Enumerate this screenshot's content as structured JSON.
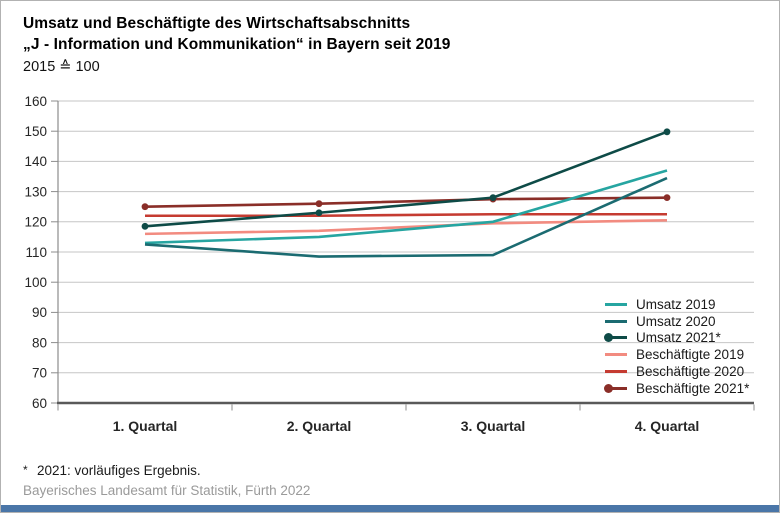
{
  "header": {
    "title_line1": "Umsatz und Beschäftigte des Wirtschaftsabschnitts",
    "title_line2": "„J - Information und Kommunikation“ in Bayern seit 2019",
    "index_note": "2015 ≙ 100"
  },
  "chart_data": {
    "type": "line",
    "categories": [
      "1. Quartal",
      "2. Quartal",
      "3. Quartal",
      "4. Quartal"
    ],
    "ylim": [
      60,
      160
    ],
    "yticks": [
      60,
      70,
      80,
      90,
      100,
      110,
      120,
      130,
      140,
      150,
      160
    ],
    "grid": true,
    "legend_position": "inside-bottom-right",
    "series": [
      {
        "name": "Umsatz 2019",
        "color": "#26A5A1",
        "marker": false,
        "values": [
          113,
          115,
          120,
          137
        ]
      },
      {
        "name": "Umsatz 2020",
        "color": "#1B6B71",
        "marker": false,
        "values": [
          112.5,
          108.5,
          109,
          134.5
        ]
      },
      {
        "name": "Umsatz 2021*",
        "color": "#0E4B47",
        "marker": true,
        "values": [
          118.5,
          123,
          128,
          149.8
        ]
      },
      {
        "name": "Beschäftigte 2019",
        "color": "#F28B80",
        "marker": false,
        "values": [
          116,
          117,
          119.5,
          120.5
        ]
      },
      {
        "name": "Beschäftigte 2020",
        "color": "#C53B31",
        "marker": false,
        "values": [
          122,
          122,
          122.5,
          122.5
        ]
      },
      {
        "name": "Beschäftigte 2021*",
        "color": "#8A2E28",
        "marker": true,
        "values": [
          125,
          126,
          127.5,
          128
        ]
      }
    ],
    "draw_order": [
      3,
      4,
      5,
      0,
      1,
      2
    ]
  },
  "footnote": {
    "star": "*",
    "text": "2021: vorläufiges Ergebnis."
  },
  "source": "Bayerisches Landesamt für Statistik, Fürth 2022",
  "colors": {
    "accent_bar": "#4A76A8",
    "grid": "#C6C6C6",
    "axis_bottom": "#595959",
    "axis_left": "#8C8C8C",
    "tick": "#8C8C8C"
  }
}
